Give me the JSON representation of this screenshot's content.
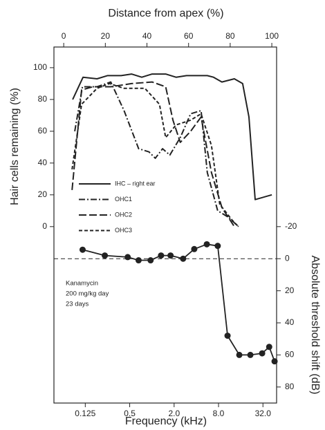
{
  "chart_data": {
    "type": "line",
    "xlabel": "Frequency (kHz)",
    "x2label": "Distance from apex (%)",
    "ylabel": "Hair cells remaining (%)",
    "y2label": "Absolute threshold shift (dB)",
    "xscale": "log",
    "xlim": [
      0.047,
      49
    ],
    "xticks": [
      0.125,
      0.5,
      {
        "value": 2,
        "label": "2.0"
      },
      {
        "value": 8,
        "label": "8.0"
      },
      {
        "value": 32,
        "label": "32.0"
      }
    ],
    "x2lim": [
      -4.7,
      102.3
    ],
    "x2ticks": [
      0,
      20,
      40,
      60,
      80,
      100
    ],
    "ylim": [
      -111,
      113
    ],
    "yticks": [
      0,
      20,
      40,
      60,
      80,
      100
    ],
    "y2lim": [
      90,
      -132
    ],
    "y2ticks": [
      -20,
      0,
      20,
      40,
      60,
      80
    ],
    "y2_reference": 0,
    "annotation": [
      "Kanamycin",
      "200 mg/kg day",
      "23 days"
    ],
    "series": [
      {
        "name": "IHC – right ear",
        "color": "#222222",
        "dash": "solid",
        "xaxis": "x2",
        "axis": "y",
        "x": [
          4.3,
          9.3,
          16,
          21,
          27.6,
          32.6,
          37.5,
          42.5,
          49,
          54,
          59,
          69,
          72,
          76,
          82,
          86,
          89,
          92,
          100
        ],
        "values": [
          80,
          94,
          93,
          95,
          95,
          96,
          94,
          96,
          96,
          94,
          95,
          95,
          94,
          91,
          93,
          90,
          69,
          17,
          20
        ]
      },
      {
        "name": "OHC1",
        "color": "#222222",
        "dash": "dashdot",
        "xaxis": "x2",
        "axis": "y",
        "x": [
          5.3,
          9,
          16,
          22.6,
          29,
          36,
          41,
          44,
          47.5,
          51,
          56,
          61,
          66,
          69,
          74,
          79,
          84
        ],
        "values": [
          60,
          88,
          88,
          91,
          73,
          49,
          47,
          43,
          49,
          45,
          56,
          71,
          73,
          34,
          10,
          6,
          0
        ]
      },
      {
        "name": "OHC2",
        "color": "#222222",
        "dash": "longdash",
        "xaxis": "x2",
        "axis": "y",
        "x": [
          4,
          8.6,
          14,
          22.6,
          32.6,
          42.5,
          49,
          52.5,
          56,
          61,
          66,
          71,
          76,
          82
        ],
        "values": [
          23,
          86,
          88,
          88,
          90,
          91,
          88,
          67,
          53,
          60,
          69,
          34,
          12,
          0
        ]
      },
      {
        "name": "OHC3",
        "color": "#222222",
        "dash": "shortdash",
        "xaxis": "x2",
        "axis": "y",
        "x": [
          4,
          8.6,
          16,
          22,
          29,
          39,
          46,
          49,
          54,
          61,
          66,
          71,
          75,
          81,
          84
        ],
        "values": [
          36,
          77,
          87,
          90,
          87,
          87,
          77,
          56,
          64,
          67,
          71,
          51,
          14,
          4,
          0
        ]
      },
      {
        "color": "#222222",
        "dash": "solid",
        "marker": true,
        "xaxis": "x",
        "axis": "y2",
        "x": [
          0.115,
          0.23,
          0.47,
          0.66,
          0.96,
          1.33,
          1.79,
          2.65,
          3.75,
          5.55,
          7.8,
          10.6,
          15.3,
          21.6,
          31.2,
          38.9,
          46
        ],
        "values": [
          -5.6,
          -2,
          -1,
          1,
          1,
          -2,
          -2,
          0,
          -6,
          -9,
          -8,
          48,
          60,
          60,
          59,
          55,
          64
        ]
      }
    ]
  }
}
